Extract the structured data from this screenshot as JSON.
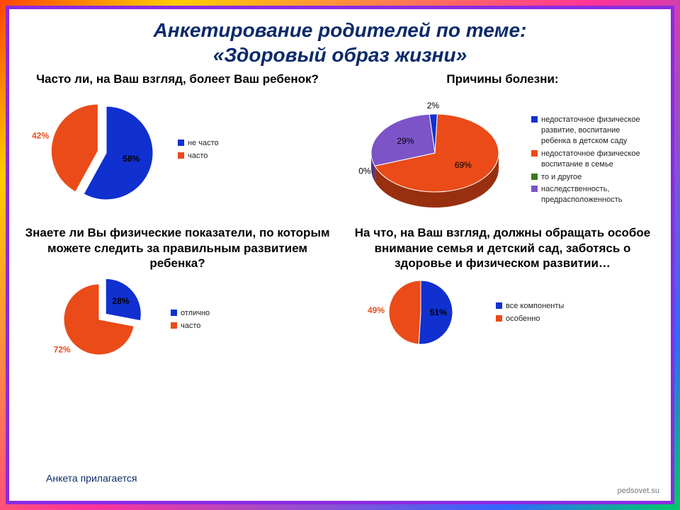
{
  "title_line1": "Анкетирование родителей по теме:",
  "title_line2": "«Здоровый образ жизни»",
  "footer_note": "Анкета прилагается",
  "watermark": "pedsovet.su",
  "colors": {
    "blue": "#1030d0",
    "orange": "#ea4b18",
    "purple": "#7c54c8",
    "green": "#3a7a1c",
    "title_navy": "#0b2a6b",
    "ring_purple": "#8a2be2"
  },
  "chart1": {
    "type": "pie",
    "title": "Часто ли, на Ваш взгляд, болеет Ваш ребенок?",
    "series": [
      {
        "label": "не часто",
        "value": 58,
        "color": "#1030d0"
      },
      {
        "label": "часто",
        "value": 42,
        "color": "#ea4b18"
      }
    ],
    "exploded_index": 1,
    "pct_labels": [
      {
        "text": "58%",
        "color": "#000",
        "pos": "inner_blue"
      },
      {
        "text": "42%",
        "color": "#ea4b18",
        "pos": "outer_left"
      }
    ],
    "size": 150
  },
  "chart2": {
    "type": "pie_3d",
    "title": "Причины болезни:",
    "series": [
      {
        "label": "недостаточное физическое развитие, воспитание ребенка в детском саду",
        "value": 2,
        "color": "#1030d0"
      },
      {
        "label": "недостаточное физическое воспитание в семье",
        "value": 69,
        "color": "#ea4b18"
      },
      {
        "label": "то и другое",
        "value": 0,
        "color": "#3a7a1c"
      },
      {
        "label": "наследственность, предрасположенность",
        "value": 29,
        "color": "#7c54c8"
      }
    ],
    "pct_labels": [
      {
        "text": "2%",
        "color": "#000"
      },
      {
        "text": "69%",
        "color": "#000"
      },
      {
        "text": "0%",
        "color": "#000"
      },
      {
        "text": "29%",
        "color": "#000"
      }
    ],
    "size": 190
  },
  "chart3": {
    "type": "pie",
    "title": "Знаете ли Вы физические показатели, по которым можете следить за правильным развитием ребенка?",
    "series": [
      {
        "label": "отлично",
        "value": 28,
        "color": "#1030d0"
      },
      {
        "label": "часто",
        "value": 72,
        "color": "#ea4b18"
      }
    ],
    "exploded_index": 0,
    "pct_labels": [
      {
        "text": "28%",
        "color": "#000"
      },
      {
        "text": "72%",
        "color": "#ea4b18"
      }
    ],
    "size": 120
  },
  "chart4": {
    "type": "pie",
    "title": "На что, на Ваш взгляд, должны обращать особое внимание семья и детский сад, заботясь о здоровье и физическом развитии…",
    "series": [
      {
        "label": "все компоненты",
        "value": 51,
        "color": "#1030d0"
      },
      {
        "label": "особенно",
        "value": 49,
        "color": "#ea4b18"
      }
    ],
    "pct_labels": [
      {
        "text": "51%",
        "color": "#000"
      },
      {
        "text": "49%",
        "color": "#ea4b18"
      }
    ],
    "size": 110
  }
}
